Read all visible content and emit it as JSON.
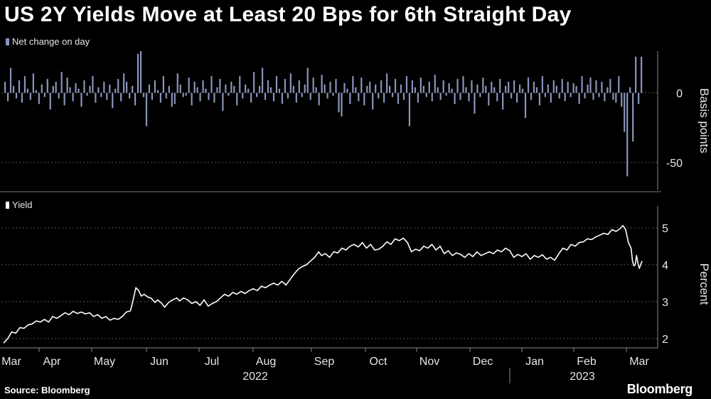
{
  "title": "US 2Y Yields Move at Least 20 Bps for 6th Straight Day",
  "source": "Source: Bloomberg",
  "brand": "Bloomberg",
  "colors": {
    "background": "#000000",
    "bars": "#8a95bb",
    "line": "#ffffff",
    "grid": "#555555"
  },
  "chart_data": [
    {
      "type": "bar",
      "legend": "Net change on day",
      "ylabel": "Basis points",
      "yticks": [
        0,
        -50
      ],
      "ylim": [
        -70,
        30
      ],
      "x_start": "2022-03-01",
      "x_end": "2023-03-10",
      "values": [
        8,
        -6,
        18,
        5,
        -4,
        9,
        -7,
        12,
        3,
        -5,
        14,
        2,
        -8,
        6,
        -3,
        10,
        -12,
        5,
        8,
        -4,
        15,
        -9,
        11,
        4,
        -6,
        7,
        3,
        -10,
        9,
        -2,
        5,
        12,
        -7,
        4,
        -3,
        8,
        -5,
        6,
        -11,
        3,
        10,
        -6,
        14,
        8,
        -4,
        5,
        -9,
        28,
        30,
        -3,
        -24,
        6,
        -5,
        9,
        2,
        -7,
        12,
        -4,
        5,
        -10,
        -8,
        14,
        6,
        -3,
        -2,
        11,
        -9,
        8,
        4,
        -6,
        9,
        3,
        -5,
        12,
        -7,
        4,
        10,
        -13,
        6,
        -2,
        8,
        5,
        -9,
        12,
        -4,
        6,
        3,
        -7,
        15,
        -3,
        5,
        18,
        -5,
        9,
        4,
        -6,
        12,
        3,
        -8,
        10,
        -4,
        14,
        5,
        -7,
        9,
        -3,
        6,
        18,
        -5,
        11,
        4,
        -9,
        13,
        6,
        -4,
        8,
        -2,
        10,
        -14,
        -17,
        7,
        3,
        -8,
        12,
        4,
        -6,
        11,
        -9,
        5,
        8,
        -12,
        6,
        -4,
        9,
        -7,
        14,
        5,
        -3,
        10,
        -8,
        6,
        -5,
        12,
        -24,
        9,
        4,
        -7,
        11,
        5,
        -3,
        8,
        -6,
        13,
        4,
        -5,
        9,
        -2,
        7,
        3,
        -8,
        10,
        -5,
        12,
        4,
        -6,
        9,
        -15,
        6,
        -3,
        11,
        5,
        -9,
        8,
        4,
        -6,
        10,
        -12,
        5,
        8,
        -4,
        9,
        -7,
        6,
        3,
        -18,
        11,
        -5,
        8,
        4,
        -9,
        12,
        -3,
        6,
        -7,
        9,
        5,
        -4,
        10,
        -6,
        8,
        -3,
        7,
        5,
        -8,
        12,
        -4,
        6,
        11,
        -5,
        9,
        -3,
        8,
        -6,
        4,
        10,
        -5,
        -7,
        12,
        -10,
        -28,
        -60,
        4,
        -35,
        26,
        -8,
        26
      ],
      "series_line": null
    },
    {
      "type": "line",
      "legend": "Yield",
      "ylabel": "Percent",
      "yticks": [
        5,
        4,
        3,
        2
      ],
      "ylim": [
        1.75,
        5.4
      ],
      "x_start": "2022-03-01",
      "x_end": "2023-03-10",
      "x_tick_labels": [
        "Mar",
        "Apr",
        "May",
        "Jun",
        "Jul",
        "Aug",
        "Sep",
        "Oct",
        "Nov",
        "Dec",
        "Jan",
        "Feb",
        "Mar"
      ],
      "year_labels": [
        "2022",
        "2023"
      ],
      "points": [
        [
          0,
          1.88
        ],
        [
          3,
          2.0
        ],
        [
          6,
          2.18
        ],
        [
          9,
          2.15
        ],
        [
          12,
          2.3
        ],
        [
          15,
          2.28
        ],
        [
          18,
          2.37
        ],
        [
          21,
          2.4
        ],
        [
          24,
          2.48
        ],
        [
          27,
          2.45
        ],
        [
          30,
          2.52
        ],
        [
          33,
          2.45
        ],
        [
          36,
          2.6
        ],
        [
          39,
          2.55
        ],
        [
          42,
          2.62
        ],
        [
          45,
          2.7
        ],
        [
          48,
          2.65
        ],
        [
          51,
          2.74
        ],
        [
          54,
          2.68
        ],
        [
          57,
          2.72
        ],
        [
          60,
          2.67
        ],
        [
          63,
          2.7
        ],
        [
          66,
          2.6
        ],
        [
          69,
          2.65
        ],
        [
          72,
          2.55
        ],
        [
          75,
          2.6
        ],
        [
          78,
          2.5
        ],
        [
          81,
          2.55
        ],
        [
          84,
          2.52
        ],
        [
          87,
          2.6
        ],
        [
          90,
          2.72
        ],
        [
          93,
          2.75
        ],
        [
          95,
          3.05
        ],
        [
          97,
          3.38
        ],
        [
          99,
          3.3
        ],
        [
          101,
          3.15
        ],
        [
          103,
          3.2
        ],
        [
          106,
          3.12
        ],
        [
          108,
          3.1
        ],
        [
          111,
          2.98
        ],
        [
          113,
          3.05
        ],
        [
          116,
          2.95
        ],
        [
          118,
          2.85
        ],
        [
          121,
          2.98
        ],
        [
          124,
          3.05
        ],
        [
          127,
          3.1
        ],
        [
          129,
          3.02
        ],
        [
          132,
          3.1
        ],
        [
          135,
          3.05
        ],
        [
          138,
          2.95
        ],
        [
          141,
          3.0
        ],
        [
          144,
          2.9
        ],
        [
          147,
          3.05
        ],
        [
          150,
          2.88
        ],
        [
          153,
          2.95
        ],
        [
          156,
          3.0
        ],
        [
          159,
          3.1
        ],
        [
          162,
          3.2
        ],
        [
          165,
          3.15
        ],
        [
          168,
          3.25
        ],
        [
          171,
          3.2
        ],
        [
          174,
          3.28
        ],
        [
          177,
          3.22
        ],
        [
          180,
          3.3
        ],
        [
          183,
          3.35
        ],
        [
          186,
          3.3
        ],
        [
          189,
          3.42
        ],
        [
          192,
          3.38
        ],
        [
          195,
          3.45
        ],
        [
          198,
          3.5
        ],
        [
          201,
          3.45
        ],
        [
          204,
          3.55
        ],
        [
          207,
          3.45
        ],
        [
          210,
          3.6
        ],
        [
          213,
          3.75
        ],
        [
          216,
          3.88
        ],
        [
          219,
          3.95
        ],
        [
          222,
          4.0
        ],
        [
          225,
          4.1
        ],
        [
          228,
          4.2
        ],
        [
          231,
          4.35
        ],
        [
          233,
          4.25
        ],
        [
          236,
          4.3
        ],
        [
          239,
          4.2
        ],
        [
          242,
          4.35
        ],
        [
          245,
          4.32
        ],
        [
          248,
          4.45
        ],
        [
          251,
          4.4
        ],
        [
          254,
          4.5
        ],
        [
          257,
          4.55
        ],
        [
          260,
          4.48
        ],
        [
          263,
          4.6
        ],
        [
          266,
          4.45
        ],
        [
          269,
          4.55
        ],
        [
          272,
          4.4
        ],
        [
          275,
          4.42
        ],
        [
          278,
          4.5
        ],
        [
          281,
          4.62
        ],
        [
          284,
          4.55
        ],
        [
          287,
          4.7
        ],
        [
          290,
          4.65
        ],
        [
          293,
          4.72
        ],
        [
          296,
          4.6
        ],
        [
          299,
          4.35
        ],
        [
          302,
          4.42
        ],
        [
          305,
          4.38
        ],
        [
          308,
          4.5
        ],
        [
          311,
          4.45
        ],
        [
          314,
          4.55
        ],
        [
          317,
          4.4
        ],
        [
          320,
          4.5
        ],
        [
          323,
          4.3
        ],
        [
          326,
          4.38
        ],
        [
          329,
          4.25
        ],
        [
          332,
          4.32
        ],
        [
          335,
          4.28
        ],
        [
          338,
          4.2
        ],
        [
          341,
          4.3
        ],
        [
          344,
          4.22
        ],
        [
          347,
          4.35
        ],
        [
          350,
          4.25
        ],
        [
          353,
          4.3
        ],
        [
          356,
          4.35
        ],
        [
          359,
          4.3
        ],
        [
          362,
          4.4
        ],
        [
          365,
          4.35
        ],
        [
          368,
          4.45
        ],
        [
          371,
          4.38
        ],
        [
          374,
          4.2
        ],
        [
          377,
          4.28
        ],
        [
          380,
          4.22
        ],
        [
          383,
          4.3
        ],
        [
          386,
          4.15
        ],
        [
          389,
          4.25
        ],
        [
          392,
          4.2
        ],
        [
          395,
          4.27
        ],
        [
          398,
          4.15
        ],
        [
          401,
          4.2
        ],
        [
          404,
          4.12
        ],
        [
          407,
          4.3
        ],
        [
          410,
          4.45
        ],
        [
          413,
          4.4
        ],
        [
          416,
          4.55
        ],
        [
          419,
          4.5
        ],
        [
          422,
          4.6
        ],
        [
          425,
          4.62
        ],
        [
          428,
          4.7
        ],
        [
          431,
          4.68
        ],
        [
          434,
          4.75
        ],
        [
          437,
          4.8
        ],
        [
          440,
          4.85
        ],
        [
          443,
          4.82
        ],
        [
          446,
          4.95
        ],
        [
          449,
          4.9
        ],
        [
          452,
          4.98
        ],
        [
          454,
          5.06
        ],
        [
          456,
          4.95
        ],
        [
          458,
          4.6
        ],
        [
          460,
          4.45
        ],
        [
          461,
          4.1
        ],
        [
          462,
          3.97
        ],
        [
          463,
          4.0
        ],
        [
          464,
          4.25
        ],
        [
          465,
          4.05
        ],
        [
          466,
          3.9
        ],
        [
          467,
          4.0
        ],
        [
          468,
          4.1
        ]
      ]
    }
  ],
  "bar_chart": {
    "legend": "Net change on day",
    "ylabel": "Basis points",
    "yticks": [
      "0",
      "-50"
    ]
  },
  "line_chart": {
    "legend": "Yield",
    "ylabel": "Percent",
    "yticks": [
      "5",
      "4",
      "3",
      "2"
    ]
  },
  "x_axis": {
    "months": [
      "Mar",
      "Apr",
      "May",
      "Jun",
      "Jul",
      "Aug",
      "Sep",
      "Oct",
      "Nov",
      "Dec",
      "Jan",
      "Feb",
      "Mar"
    ],
    "years": [
      "2022",
      "2023"
    ]
  }
}
